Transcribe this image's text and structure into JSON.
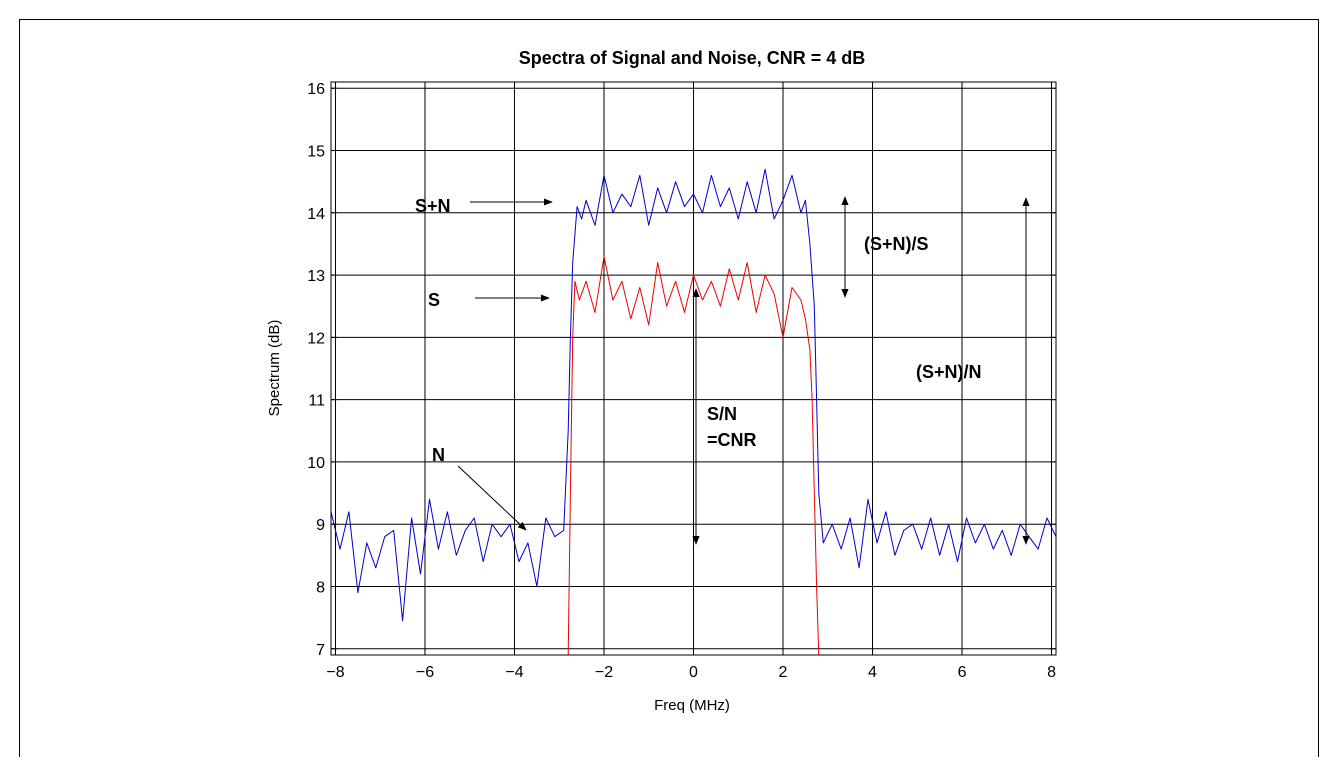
{
  "chart_data": {
    "type": "line",
    "title": "Spectra of Signal and Noise, CNR = 4 dB",
    "xlabel": "Freq (MHz)",
    "ylabel": "Spectrum (dB)",
    "xlim": [
      -8.1,
      8.1
    ],
    "ylim": [
      6.9,
      16.1
    ],
    "xticks": [
      -8,
      -6,
      -4,
      -2,
      0,
      2,
      4,
      6,
      8
    ],
    "xtick_labels": [
      "−8",
      "−6",
      "−4",
      "−2",
      "0",
      "2",
      "4",
      "6",
      "8"
    ],
    "yticks": [
      7,
      8,
      9,
      10,
      11,
      12,
      13,
      14,
      15,
      16
    ],
    "ytick_labels": [
      "7",
      "8",
      "9",
      "10",
      "11",
      "12",
      "13",
      "14",
      "15",
      "16"
    ],
    "grid": true,
    "series": [
      {
        "color": "#0000cc",
        "x": [
          -8.1,
          -7.9,
          -7.7,
          -7.5,
          -7.3,
          -7.1,
          -6.9,
          -6.7,
          -6.5,
          -6.3,
          -6.1,
          -5.9,
          -5.7,
          -5.5,
          -5.3,
          -5.1,
          -4.9,
          -4.7,
          -4.5,
          -4.3,
          -4.1,
          -3.9,
          -3.7,
          -3.5,
          -3.3,
          -3.1,
          -2.9,
          -2.8,
          -2.75,
          -2.7,
          -2.6,
          -2.5,
          -2.4,
          -2.2,
          -2.0,
          -1.8,
          -1.6,
          -1.4,
          -1.2,
          -1.0,
          -0.8,
          -0.6,
          -0.4,
          -0.2,
          0.0,
          0.2,
          0.4,
          0.6,
          0.8,
          1.0,
          1.2,
          1.4,
          1.6,
          1.8,
          2.0,
          2.2,
          2.4,
          2.5,
          2.6,
          2.7,
          2.75,
          2.8,
          2.9,
          3.1,
          3.3,
          3.5,
          3.7,
          3.9,
          4.1,
          4.3,
          4.5,
          4.7,
          4.9,
          5.1,
          5.3,
          5.5,
          5.7,
          5.9,
          6.1,
          6.3,
          6.5,
          6.7,
          6.9,
          7.1,
          7.3,
          7.5,
          7.7,
          7.9,
          8.1
        ],
        "values": [
          9.2,
          8.6,
          9.2,
          7.9,
          8.7,
          8.3,
          8.8,
          8.9,
          7.45,
          9.1,
          8.2,
          9.4,
          8.6,
          9.2,
          8.5,
          8.9,
          9.1,
          8.4,
          9.0,
          8.8,
          9.0,
          8.4,
          8.7,
          8.0,
          9.1,
          8.8,
          8.9,
          10.5,
          12.0,
          13.2,
          14.1,
          13.9,
          14.2,
          13.8,
          14.6,
          14.0,
          14.3,
          14.1,
          14.6,
          13.8,
          14.4,
          14.0,
          14.5,
          14.1,
          14.3,
          14.0,
          14.6,
          14.1,
          14.4,
          13.9,
          14.5,
          14.0,
          14.7,
          13.9,
          14.2,
          14.6,
          14.0,
          14.2,
          13.5,
          12.5,
          11.0,
          9.5,
          8.7,
          9.0,
          8.6,
          9.1,
          8.3,
          9.4,
          8.7,
          9.2,
          8.5,
          8.9,
          9.0,
          8.6,
          9.1,
          8.5,
          9.0,
          8.4,
          9.1,
          8.7,
          9.0,
          8.6,
          8.9,
          8.5,
          9.0,
          8.8,
          8.6,
          9.1,
          8.8
        ]
      },
      {
        "color": "#ee0000",
        "x": [
          -2.8,
          -2.75,
          -2.7,
          -2.65,
          -2.55,
          -2.4,
          -2.2,
          -2.0,
          -1.8,
          -1.6,
          -1.4,
          -1.2,
          -1.0,
          -0.8,
          -0.6,
          -0.4,
          -0.2,
          0.0,
          0.2,
          0.4,
          0.6,
          0.8,
          1.0,
          1.2,
          1.4,
          1.6,
          1.8,
          2.0,
          2.2,
          2.4,
          2.5,
          2.6,
          2.65,
          2.7,
          2.75,
          2.8
        ],
        "values": [
          6.9,
          9.5,
          12.0,
          12.9,
          12.6,
          12.9,
          12.4,
          13.3,
          12.6,
          12.9,
          12.3,
          12.8,
          12.2,
          13.2,
          12.5,
          12.9,
          12.4,
          13.0,
          12.6,
          12.9,
          12.5,
          13.1,
          12.6,
          13.2,
          12.4,
          13.0,
          12.7,
          12.0,
          12.8,
          12.6,
          12.3,
          11.8,
          11.0,
          9.5,
          8.0,
          6.9
        ]
      }
    ],
    "annotations": [
      "S+N",
      "S",
      "N",
      "(S+N)/S",
      "(S+N)/N",
      "S/N",
      "=CNR"
    ]
  }
}
